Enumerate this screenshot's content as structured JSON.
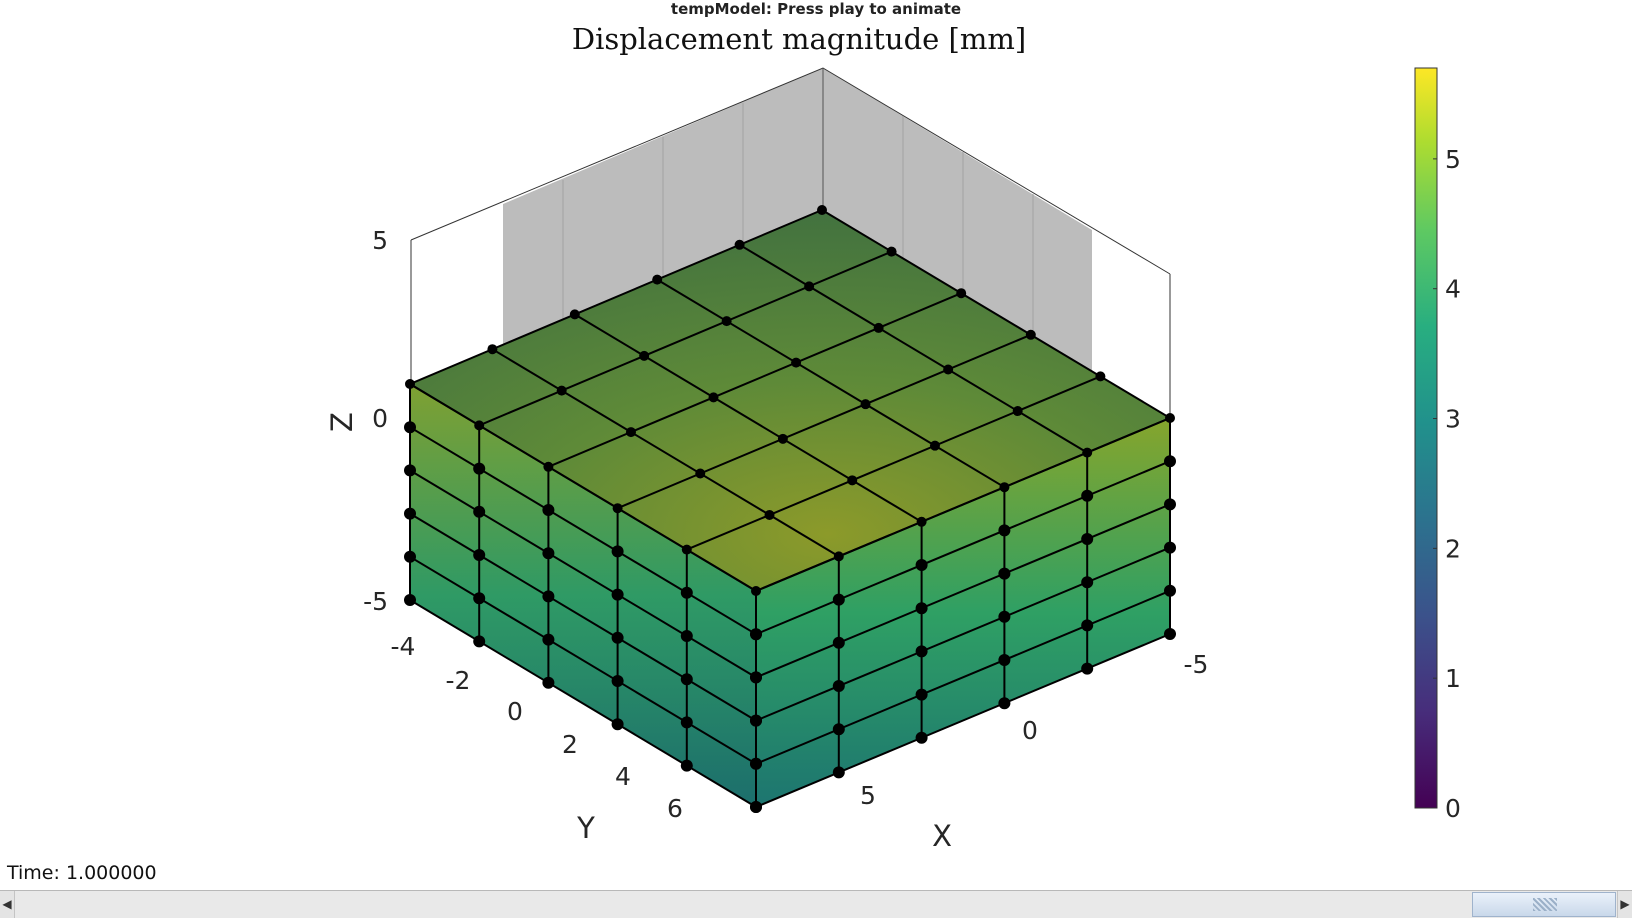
{
  "window": {
    "title": "tempModel: Press play to animate"
  },
  "plot": {
    "title": "Displacement magnitude [mm]",
    "x_axis": {
      "label": "X",
      "ticks": [
        "-5",
        "0",
        "5"
      ]
    },
    "y_axis": {
      "label": "Y",
      "ticks": [
        "-4",
        "-2",
        "0",
        "2",
        "4",
        "6"
      ]
    },
    "z_axis": {
      "label": "Z",
      "ticks": [
        "5",
        "0",
        "-5"
      ]
    },
    "colorbar": {
      "ticks": [
        "0",
        "1",
        "2",
        "3",
        "4",
        "5"
      ],
      "colormap": "viridis",
      "max": 5.7
    },
    "colors": {
      "top_face": "#4a7a3c",
      "mesh_edges": "#000000",
      "back_wall": "#b5b5b5"
    }
  },
  "animation": {
    "time_label": "Time: 1.000000",
    "slider": {
      "value_fraction": 0.95
    }
  }
}
